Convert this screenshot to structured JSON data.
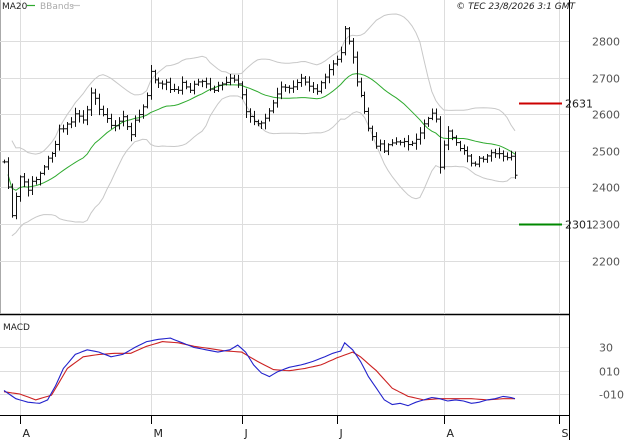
{
  "chart_data": [
    {
      "type": "line",
      "panel": "price",
      "legend": {
        "ma_label": "MA20",
        "bands_label": "BBands"
      },
      "credit": "© TEC 23/8/2026 3:1 GMT",
      "ylim": [
        2120,
        2890
      ],
      "yticks": [
        2200,
        2300,
        2400,
        2500,
        2600,
        2700,
        2800
      ],
      "grid": true,
      "x_month_labels": [
        {
          "label": "A",
          "index": 4
        },
        {
          "label": "M",
          "index": 37
        },
        {
          "label": "J",
          "index": 60
        },
        {
          "label": "J",
          "index": 84
        },
        {
          "label": "A",
          "index": 111
        },
        {
          "label": "S",
          "index": 140
        }
      ],
      "levels": [
        {
          "value": 2631,
          "label": "2631",
          "color": "#cc0000"
        },
        {
          "value": 2301,
          "label": "2301",
          "color": "#008800"
        }
      ],
      "colors": {
        "bars": "#111111",
        "ma": "#2eaa2e",
        "bands": "#c8c8c8",
        "grid": "#dddddd"
      },
      "price_anchors": [
        [
          0,
          2470
        ],
        [
          2,
          2330
        ],
        [
          4,
          2430
        ],
        [
          6,
          2400
        ],
        [
          8,
          2420
        ],
        [
          10,
          2460
        ],
        [
          12,
          2490
        ],
        [
          14,
          2560
        ],
        [
          16,
          2570
        ],
        [
          18,
          2600
        ],
        [
          20,
          2590
        ],
        [
          22,
          2650
        ],
        [
          24,
          2620
        ],
        [
          26,
          2580
        ],
        [
          28,
          2570
        ],
        [
          30,
          2590
        ],
        [
          32,
          2550
        ],
        [
          34,
          2600
        ],
        [
          36,
          2650
        ],
        [
          37,
          2720
        ],
        [
          39,
          2680
        ],
        [
          41,
          2690
        ],
        [
          43,
          2660
        ],
        [
          45,
          2680
        ],
        [
          47,
          2670
        ],
        [
          49,
          2690
        ],
        [
          51,
          2680
        ],
        [
          53,
          2670
        ],
        [
          55,
          2690
        ],
        [
          57,
          2700
        ],
        [
          59,
          2680
        ],
        [
          61,
          2610
        ],
        [
          63,
          2580
        ],
        [
          65,
          2570
        ],
        [
          67,
          2610
        ],
        [
          69,
          2660
        ],
        [
          71,
          2680
        ],
        [
          73,
          2670
        ],
        [
          75,
          2690
        ],
        [
          77,
          2670
        ],
        [
          79,
          2660
        ],
        [
          81,
          2710
        ],
        [
          83,
          2740
        ],
        [
          85,
          2770
        ],
        [
          86,
          2830
        ],
        [
          88,
          2760
        ],
        [
          89,
          2680
        ],
        [
          90,
          2660
        ],
        [
          92,
          2560
        ],
        [
          94,
          2520
        ],
        [
          96,
          2500
        ],
        [
          98,
          2520
        ],
        [
          100,
          2530
        ],
        [
          102,
          2510
        ],
        [
          104,
          2540
        ],
        [
          106,
          2570
        ],
        [
          108,
          2600
        ],
        [
          109,
          2580
        ],
        [
          110,
          2460
        ],
        [
          112,
          2560
        ],
        [
          114,
          2530
        ],
        [
          116,
          2500
        ],
        [
          118,
          2460
        ],
        [
          120,
          2480
        ],
        [
          122,
          2490
        ],
        [
          124,
          2500
        ],
        [
          126,
          2490
        ],
        [
          128,
          2480
        ],
        [
          129,
          2440
        ]
      ]
    },
    {
      "type": "line",
      "panel": "macd",
      "label": "MACD",
      "ylim": [
        -22,
        45
      ],
      "yticks": [
        30,
        10,
        -10
      ],
      "ytick_labels": [
        "30",
        "010",
        "-010"
      ],
      "colors": {
        "macd": "#2222cc",
        "signal": "#cc2222"
      },
      "macd_anchors": [
        [
          0,
          -7
        ],
        [
          3,
          -14
        ],
        [
          6,
          -17
        ],
        [
          9,
          -18
        ],
        [
          11,
          -15
        ],
        [
          13,
          -3
        ],
        [
          15,
          12
        ],
        [
          18,
          24
        ],
        [
          21,
          28
        ],
        [
          24,
          26
        ],
        [
          27,
          22
        ],
        [
          30,
          24
        ],
        [
          33,
          30
        ],
        [
          36,
          35
        ],
        [
          39,
          37
        ],
        [
          42,
          38
        ],
        [
          45,
          34
        ],
        [
          48,
          30
        ],
        [
          51,
          28
        ],
        [
          54,
          26
        ],
        [
          57,
          28
        ],
        [
          59,
          32
        ],
        [
          61,
          26
        ],
        [
          63,
          15
        ],
        [
          65,
          8
        ],
        [
          67,
          5
        ],
        [
          69,
          9
        ],
        [
          72,
          13
        ],
        [
          75,
          15
        ],
        [
          78,
          18
        ],
        [
          81,
          22
        ],
        [
          83,
          25
        ],
        [
          85,
          27
        ],
        [
          86,
          34
        ],
        [
          88,
          28
        ],
        [
          90,
          18
        ],
        [
          92,
          5
        ],
        [
          94,
          -5
        ],
        [
          96,
          -15
        ],
        [
          98,
          -19
        ],
        [
          100,
          -18
        ],
        [
          102,
          -20
        ],
        [
          104,
          -17
        ],
        [
          106,
          -15
        ],
        [
          108,
          -13
        ],
        [
          110,
          -14
        ],
        [
          112,
          -16
        ],
        [
          114,
          -15
        ],
        [
          116,
          -16
        ],
        [
          118,
          -18
        ],
        [
          120,
          -17
        ],
        [
          122,
          -15
        ],
        [
          124,
          -14
        ],
        [
          126,
          -12
        ],
        [
          128,
          -13
        ],
        [
          129,
          -14
        ]
      ],
      "signal_anchors": [
        [
          0,
          -8
        ],
        [
          4,
          -10
        ],
        [
          8,
          -15
        ],
        [
          12,
          -11
        ],
        [
          16,
          12
        ],
        [
          20,
          22
        ],
        [
          24,
          24
        ],
        [
          28,
          25
        ],
        [
          32,
          25
        ],
        [
          36,
          31
        ],
        [
          40,
          35
        ],
        [
          44,
          34
        ],
        [
          48,
          31
        ],
        [
          52,
          29
        ],
        [
          56,
          27
        ],
        [
          60,
          26
        ],
        [
          64,
          18
        ],
        [
          68,
          11
        ],
        [
          72,
          10
        ],
        [
          76,
          12
        ],
        [
          80,
          15
        ],
        [
          84,
          21
        ],
        [
          88,
          26
        ],
        [
          90,
          22
        ],
        [
          94,
          10
        ],
        [
          98,
          -5
        ],
        [
          102,
          -12
        ],
        [
          106,
          -15
        ],
        [
          110,
          -14
        ],
        [
          114,
          -14
        ],
        [
          118,
          -14
        ],
        [
          122,
          -15
        ],
        [
          126,
          -14
        ],
        [
          129,
          -14
        ]
      ]
    }
  ]
}
